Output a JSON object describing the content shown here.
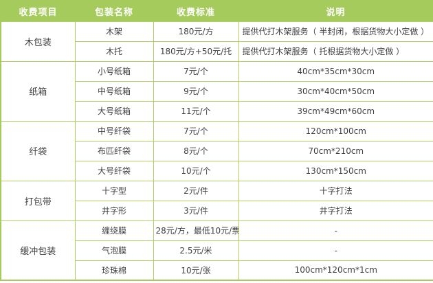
{
  "table": {
    "headers": [
      "收费项目",
      "包装名称",
      "收费标准",
      "说明"
    ],
    "colors": {
      "header_bg": "#a4cb5b",
      "border": "#b0d065",
      "header_text": "#ffffff",
      "body_text": "#3f3f3f"
    },
    "sections": [
      {
        "category": "木包装",
        "rows": [
          {
            "name": "木架",
            "price": "180元/方",
            "note": "提供代打木架服务（ 半封闭，根据货物大小定做 ）"
          },
          {
            "name": "木托",
            "price": "180元/方+50元/托",
            "note": "提供代打木架服务（ 托根据货物大小定做 ）"
          }
        ]
      },
      {
        "category": "纸箱",
        "rows": [
          {
            "name": "小号纸箱",
            "price": "7元/个",
            "note": "40cm*35cm*30cm"
          },
          {
            "name": "中号纸箱",
            "price": "9元/个",
            "note": "30cm*40cm*50cm"
          },
          {
            "name": "大号纸箱",
            "price": "11元/个",
            "note": "39cm*49cm*60cm"
          }
        ]
      },
      {
        "category": "纤袋",
        "rows": [
          {
            "name": "中号纤袋",
            "price": "7元/个",
            "note": "120cm*100cm"
          },
          {
            "name": "布匹纤袋",
            "price": "8元/个",
            "note": "70cm*210cm"
          },
          {
            "name": "大号纤袋",
            "price": "10元/个",
            "note": "130cm*150cm"
          }
        ]
      },
      {
        "category": "打包带",
        "rows": [
          {
            "name": "十字型",
            "price": "2元/件",
            "note": "十字打法"
          },
          {
            "name": "井字形",
            "price": "3元/件",
            "note": "井字打法"
          }
        ]
      },
      {
        "category": "缓冲包装",
        "rows": [
          {
            "name": "缠绕膜",
            "price": "28元/方，最低10元/票",
            "note": "-"
          },
          {
            "name": "气泡膜",
            "price": "2.5元/米",
            "note": "-"
          },
          {
            "name": "珍珠棉",
            "price": "10元/张",
            "note": "100cm*120cm*1cm"
          }
        ]
      }
    ]
  }
}
